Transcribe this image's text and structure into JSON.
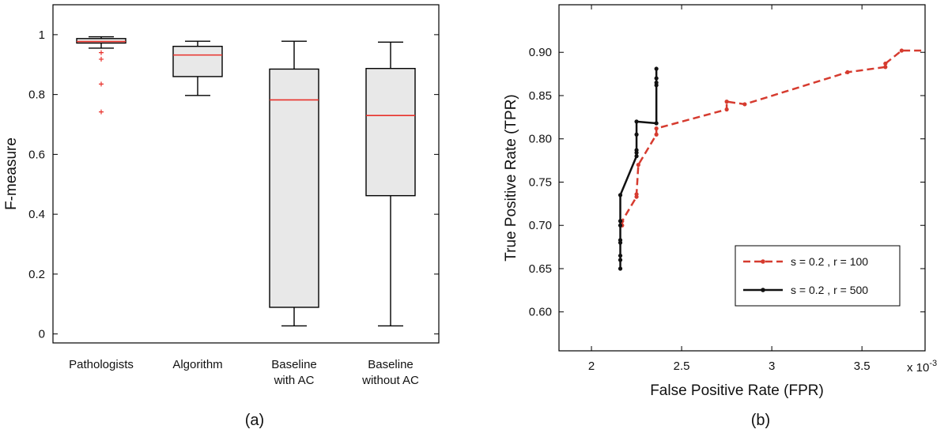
{
  "panel_labels": {
    "a": "(a)",
    "b": "(b)"
  },
  "chart_data": [
    {
      "type": "box",
      "ylabel": "F-measure",
      "xlabel": "",
      "ylim": [
        -0.03,
        1.1
      ],
      "yticks": [
        0,
        0.2,
        0.4,
        0.6,
        0.8,
        1
      ],
      "ytick_labels": [
        "0",
        "0.2",
        "0.4",
        "0.6",
        "0.8",
        "1"
      ],
      "grid": false,
      "colors": {
        "box_fill": "#e8e8e8",
        "median": "#e8302a",
        "outlier": "#e8302a",
        "line": "#000000"
      },
      "categories": [
        {
          "label": [
            "Pathologists"
          ],
          "whisker_low": 0.955,
          "q1": 0.972,
          "median": 0.977,
          "q3": 0.987,
          "whisker_high": 0.993,
          "outliers": [
            0.94,
            0.918,
            0.835,
            0.742
          ]
        },
        {
          "label": [
            "Algorithm"
          ],
          "whisker_low": 0.797,
          "q1": 0.86,
          "median": 0.932,
          "q3": 0.961,
          "whisker_high": 0.978,
          "outliers": []
        },
        {
          "label": [
            "Baseline",
            "with AC"
          ],
          "whisker_low": 0.027,
          "q1": 0.089,
          "median": 0.782,
          "q3": 0.885,
          "whisker_high": 0.978,
          "outliers": []
        },
        {
          "label": [
            "Baseline",
            "without AC"
          ],
          "whisker_low": 0.027,
          "q1": 0.462,
          "median": 0.73,
          "q3": 0.887,
          "whisker_high": 0.975,
          "outliers": []
        }
      ]
    },
    {
      "type": "line",
      "xlabel": "False Positive Rate (FPR)",
      "ylabel": "True Positive Rate (TPR)",
      "x_scale_label": "x 10",
      "x_scale_exponent": "-3",
      "xlim": [
        1.82,
        3.85
      ],
      "ylim": [
        0.555,
        0.955
      ],
      "xticks": [
        2,
        2.5,
        3,
        3.5
      ],
      "xtick_labels": [
        "2",
        "2.5",
        "3",
        "3.5"
      ],
      "yticks": [
        0.6,
        0.65,
        0.7,
        0.75,
        0.8,
        0.85,
        0.9
      ],
      "ytick_labels": [
        "0.60",
        "0.65",
        "0.70",
        "0.75",
        "0.80",
        "0.85",
        "0.90"
      ],
      "grid": false,
      "legend_position": "bottom-right",
      "series": [
        {
          "name": "s = 0.2 , r = 100",
          "color": "#d63b2f",
          "dash": true,
          "x": [
            2.17,
            2.17,
            2.25,
            2.25,
            2.26,
            2.36,
            2.36,
            2.75,
            2.75,
            2.85,
            3.42,
            3.63,
            3.63,
            3.72,
            3.85
          ],
          "y": [
            0.7,
            0.705,
            0.733,
            0.736,
            0.77,
            0.805,
            0.812,
            0.834,
            0.843,
            0.84,
            0.877,
            0.883,
            0.887,
            0.902,
            0.902
          ]
        },
        {
          "name": "s = 0.2 , r = 500",
          "color": "#111111",
          "dash": false,
          "x": [
            2.16,
            2.16,
            2.16,
            2.16,
            2.16,
            2.16,
            2.16,
            2.16,
            2.25,
            2.25,
            2.25,
            2.25,
            2.25,
            2.36,
            2.36,
            2.36,
            2.36,
            2.36
          ],
          "y": [
            0.65,
            0.66,
            0.665,
            0.68,
            0.683,
            0.7,
            0.705,
            0.735,
            0.78,
            0.784,
            0.787,
            0.805,
            0.82,
            0.818,
            0.862,
            0.865,
            0.87,
            0.881
          ]
        }
      ]
    }
  ]
}
